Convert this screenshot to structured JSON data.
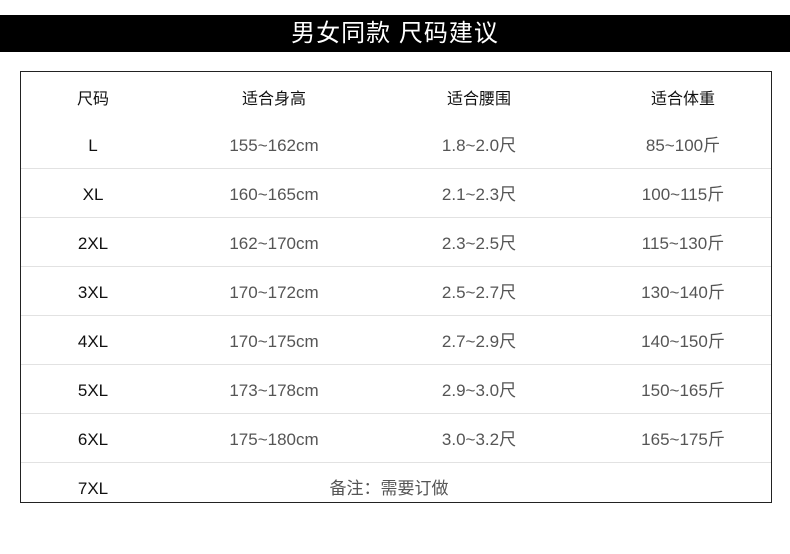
{
  "title": "男女同款  尺码建议",
  "headers": [
    "尺码",
    "适合身高",
    "适合腰围",
    "适合体重"
  ],
  "rows": [
    [
      "L",
      "155~162cm",
      "1.8~2.0尺",
      "85~100斤"
    ],
    [
      "XL",
      "160~165cm",
      "2.1~2.3尺",
      "100~115斤"
    ],
    [
      "2XL",
      "162~170cm",
      "2.3~2.5尺",
      "115~130斤"
    ],
    [
      "3XL",
      "170~172cm",
      "2.5~2.7尺",
      "130~140斤"
    ],
    [
      "4XL",
      "170~175cm",
      "2.7~2.9尺",
      "140~150斤"
    ],
    [
      "5XL",
      "173~178cm",
      "2.9~3.0尺",
      "150~165斤"
    ],
    [
      "6XL",
      "175~180cm",
      "3.0~3.2尺",
      "165~175斤"
    ]
  ],
  "last_row": {
    "size": "7XL",
    "note": "备注：需要订做"
  }
}
